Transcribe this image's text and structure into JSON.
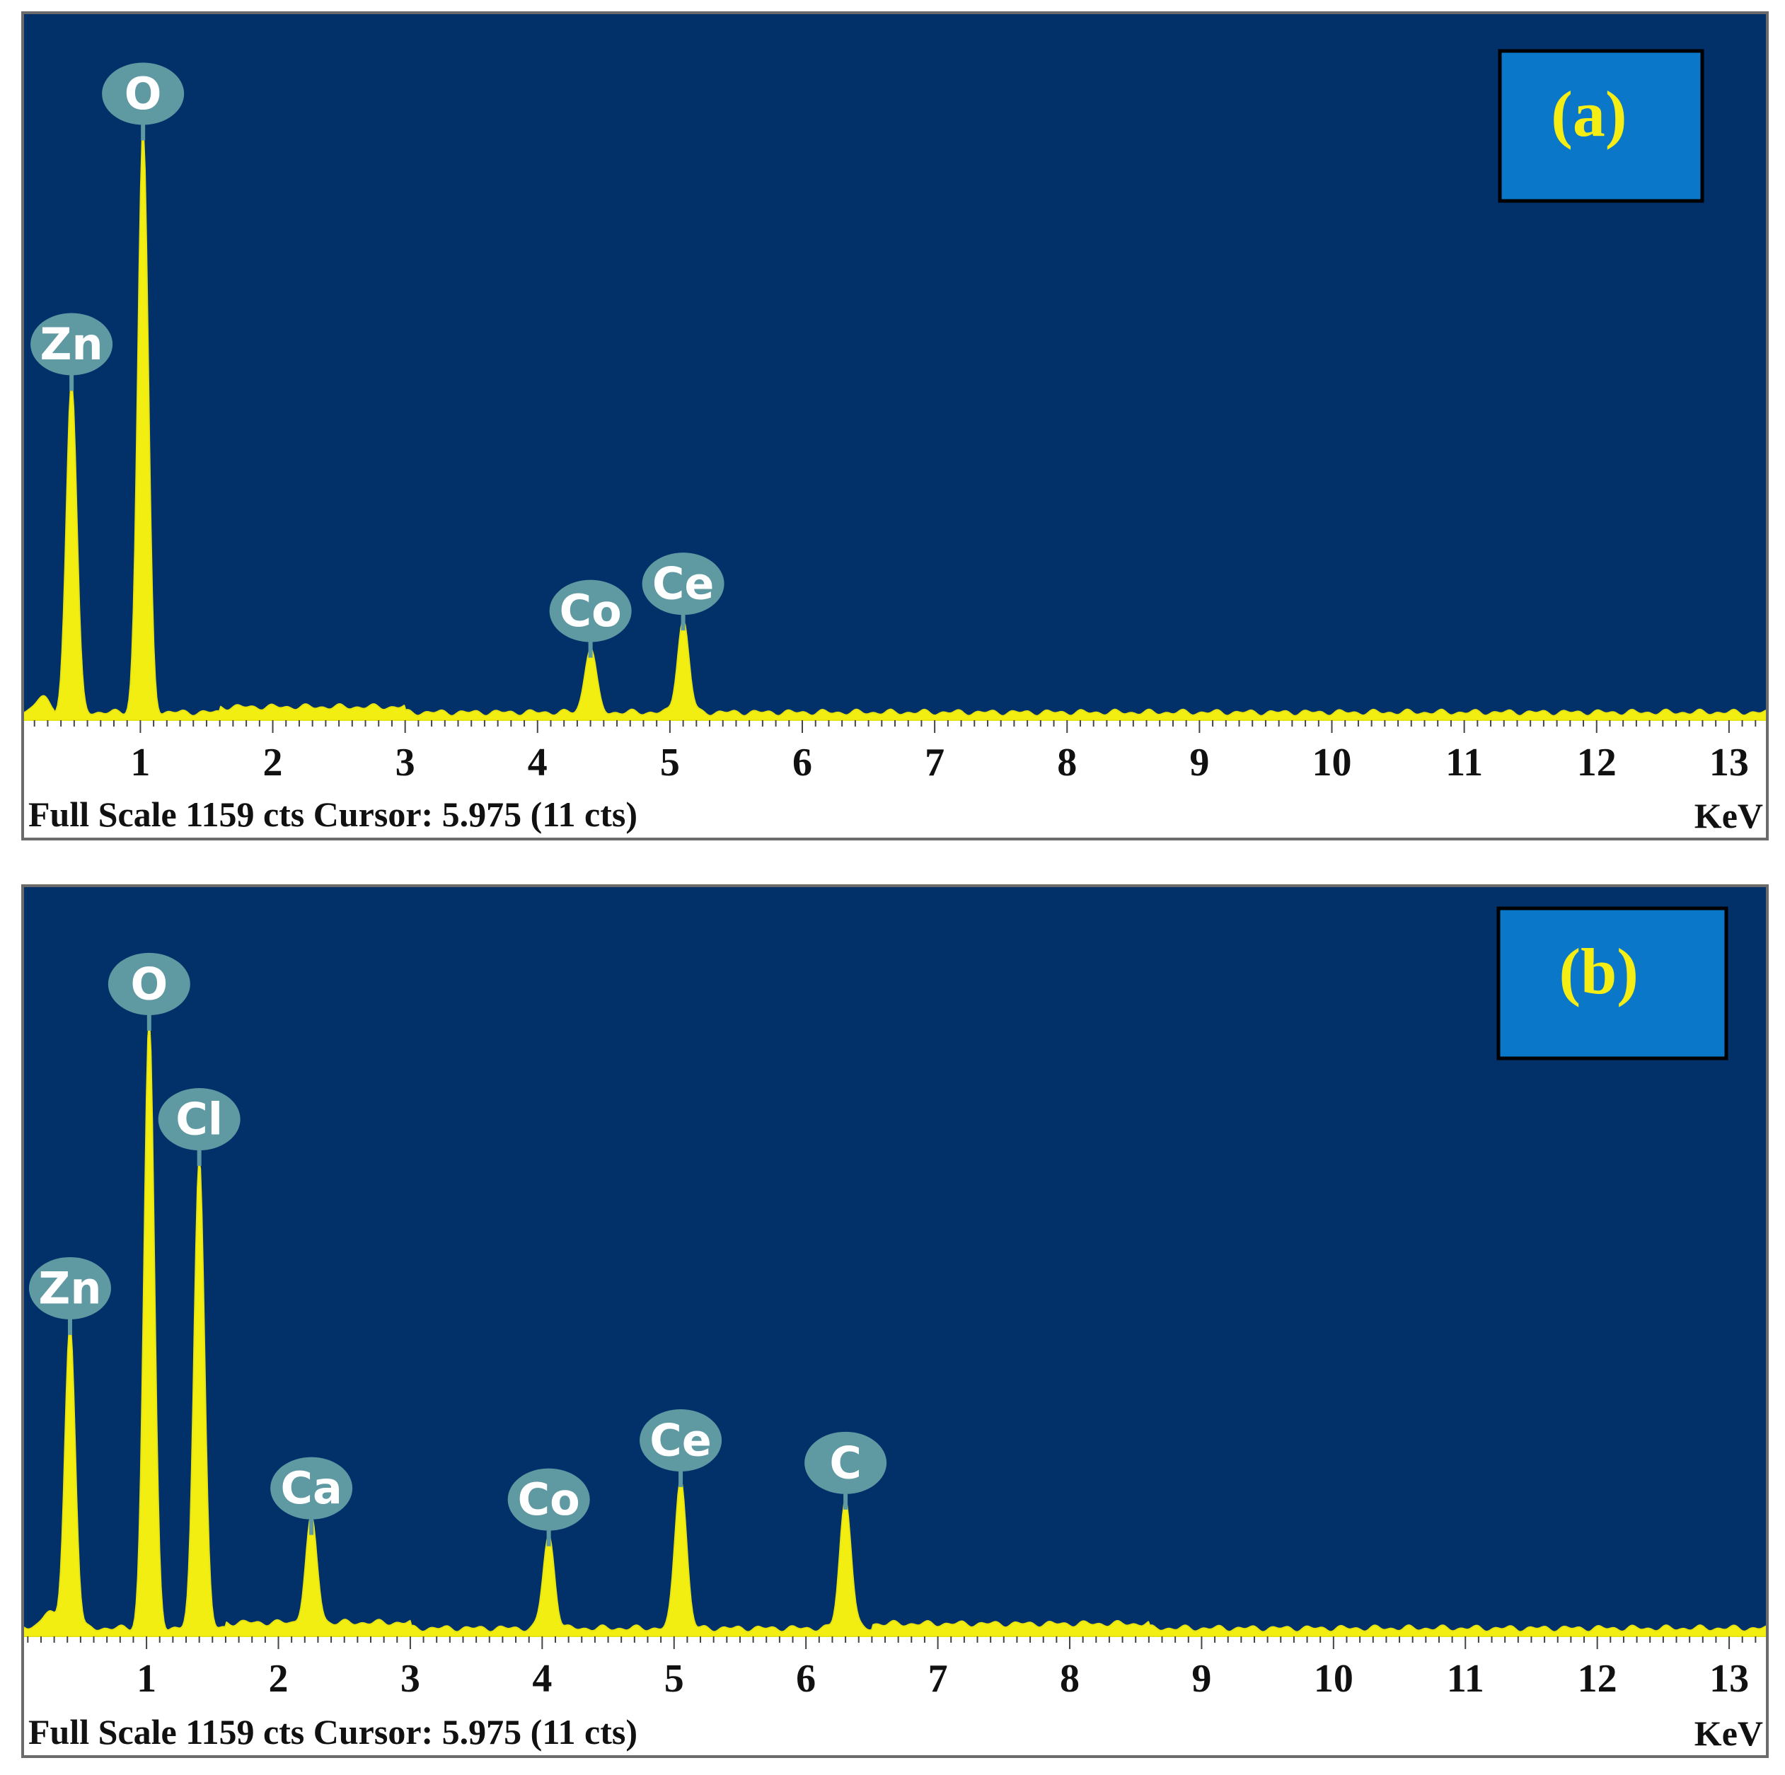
{
  "chart_data": [
    {
      "type": "line",
      "panel_label": "(a)",
      "x_ticks": [
        "1",
        "2",
        "3",
        "4",
        "5",
        "6",
        "7",
        "8",
        "9",
        "10",
        "11",
        "12",
        "13"
      ],
      "x_unit": "KeV",
      "xlim": [
        0.1,
        13.3
      ],
      "ylim": [
        0,
        1159
      ],
      "footer": "Full Scale 1159 cts Cursor: 5.975 (11 cts)",
      "peaks": [
        {
          "label": "Zn",
          "x": 0.48,
          "y": 610
        },
        {
          "label": "O",
          "x": 1.02,
          "y": 1070
        },
        {
          "label": "Co",
          "x": 4.4,
          "y": 120
        },
        {
          "label": "Ce",
          "x": 5.1,
          "y": 170
        }
      ]
    },
    {
      "type": "line",
      "panel_label": "(b)",
      "x_ticks": [
        "1",
        "2",
        "3",
        "4",
        "5",
        "6",
        "7",
        "8",
        "9",
        "10",
        "11",
        "12",
        "13"
      ],
      "x_unit": "KeV",
      "xlim": [
        0.05,
        13.3
      ],
      "ylim": [
        0,
        1159
      ],
      "footer": "Full Scale 1159 cts Cursor: 5.975 (11 cts)",
      "peaks": [
        {
          "label": "Zn",
          "x": 0.42,
          "y": 540
        },
        {
          "label": "O",
          "x": 1.02,
          "y": 1080
        },
        {
          "label": "Cl",
          "x": 1.4,
          "y": 840
        },
        {
          "label": "Ca",
          "x": 2.25,
          "y": 185
        },
        {
          "label": "Co",
          "x": 4.05,
          "y": 165
        },
        {
          "label": "Ce",
          "x": 5.05,
          "y": 270
        },
        {
          "label": "C",
          "x": 6.3,
          "y": 230
        }
      ]
    }
  ]
}
